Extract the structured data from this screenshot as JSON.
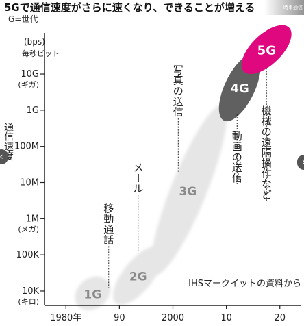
{
  "header": {
    "title": "5Gで通信速度がさらに速くなり、できることが増える",
    "subtitle": "G=世代",
    "watermark": "時事通信"
  },
  "navigation": {
    "prev_symbol": "‹",
    "next_symbol": "›"
  },
  "chart_data": {
    "type": "scatter",
    "title": "5Gで通信速度がさらに速くなり、できることが増える",
    "subtitle": "G=世代",
    "ylabel": "通信速度",
    "yunit": "(bps)",
    "yunit_sub": "毎秒ビット",
    "yscale": "log",
    "ylim": [
      4000,
      300000000000
    ],
    "xlim": [
      1976,
      2024
    ],
    "xticks": [
      {
        "value": 1980,
        "label": "1980年"
      },
      {
        "value": 1990,
        "label": "90"
      },
      {
        "value": 2000,
        "label": "2000"
      },
      {
        "value": 2010,
        "label": "10"
      },
      {
        "value": 2020,
        "label": "20"
      }
    ],
    "yticks": [
      {
        "value": 10000,
        "label": "10K",
        "sub": "(キロ)"
      },
      {
        "value": 100000,
        "label": "100K",
        "sub": ""
      },
      {
        "value": 1000000,
        "label": "1M",
        "sub": "(メガ)"
      },
      {
        "value": 10000000,
        "label": "10M",
        "sub": ""
      },
      {
        "value": 100000000,
        "label": "100M",
        "sub": ""
      },
      {
        "value": 1000000000,
        "label": "1G",
        "sub": ""
      },
      {
        "value": 10000000000,
        "label": "10G",
        "sub": "(ギガ)"
      }
    ],
    "generations": [
      {
        "label": "1G",
        "x_from": 1983,
        "x_to": 1987,
        "y_from": 5000,
        "y_to": 15000,
        "color": "#e6e6e6",
        "text_color": "#8a8a8a"
      },
      {
        "label": "2G",
        "x_from": 1990,
        "x_to": 1997,
        "y_from": 6000,
        "y_to": 120000,
        "color": "#e6e6e6",
        "text_color": "#8a8a8a"
      },
      {
        "label": "3G",
        "x_from": 1997,
        "x_to": 2009,
        "y_from": 40000,
        "y_to": 1000000000,
        "color": "#e6e6e6",
        "text_color": "#8a8a8a"
      },
      {
        "label": "4G",
        "x_from": 2010,
        "x_to": 2015,
        "y_from": 700000000,
        "y_to": 25000000000,
        "color": "#606060",
        "text_color": "#ffffff"
      },
      {
        "label": "5G",
        "x_from": 2014,
        "x_to": 2021,
        "y_from": 15000000000,
        "y_to": 150000000000,
        "color": "#e0087f",
        "text_color": "#ffffff"
      }
    ],
    "annotations": [
      {
        "text": "移動通話",
        "x": 1988,
        "y_top": 3000000,
        "leader_to": 12000
      },
      {
        "text": "メール",
        "x": 1993.5,
        "y_top": 40000000,
        "leader_to": 120000
      },
      {
        "text": "写真の送信",
        "x": 2001,
        "y_top": 20000000000,
        "leader_to": 20000000
      },
      {
        "text": "動画の送信",
        "x": 2012,
        "y_top": 300000000,
        "leader_to": 800000000
      },
      {
        "text": "機械の遠隔操作など",
        "x": 2017.5,
        "y_top": 1500000000,
        "leader_to": 15000000000
      }
    ],
    "source": "IHSマークイットの資料から",
    "grid": false,
    "legend": "none"
  }
}
